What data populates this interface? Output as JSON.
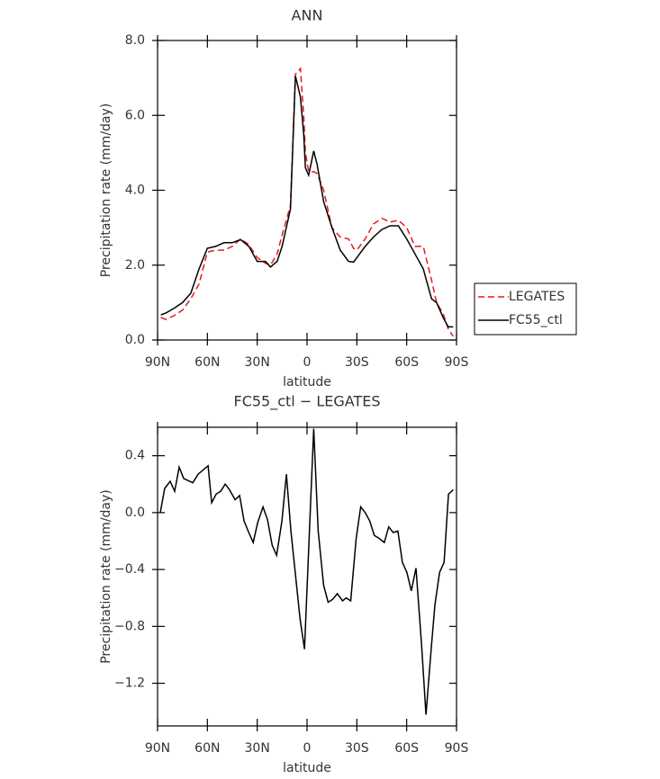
{
  "chart_data": [
    {
      "type": "line",
      "title": "ANN",
      "xlabel": "latitude",
      "ylabel": "Precipitation rate (mm/day)",
      "x": [
        88,
        85,
        80,
        75,
        70,
        65,
        60,
        55,
        50,
        45,
        40,
        35,
        30,
        25,
        22,
        18,
        15,
        10,
        7,
        4,
        2,
        1,
        -1,
        -4,
        -6,
        -10,
        -15,
        -20,
        -25,
        -28,
        -30,
        -35,
        -40,
        -45,
        -50,
        -55,
        -60,
        -65,
        -70,
        -75,
        -78,
        -82,
        -85,
        -88
      ],
      "series": [
        {
          "name": "LEGATES",
          "color": "#e8191c",
          "line_style": "dashed",
          "values": [
            0.6,
            0.55,
            0.65,
            0.8,
            1.1,
            1.5,
            2.35,
            2.4,
            2.4,
            2.5,
            2.7,
            2.55,
            2.2,
            2.05,
            2.0,
            2.3,
            2.8,
            3.6,
            7.1,
            7.25,
            6.0,
            5.0,
            4.5,
            4.5,
            4.45,
            4.0,
            3.0,
            2.75,
            2.7,
            2.45,
            2.4,
            2.7,
            3.1,
            3.25,
            3.15,
            3.2,
            3.0,
            2.5,
            2.5,
            1.6,
            1.0,
            0.7,
            0.3,
            0.1
          ]
        },
        {
          "name": "FC55_ctl",
          "color": "#000000",
          "line_style": "solid",
          "values": [
            0.67,
            0.72,
            0.85,
            1.0,
            1.25,
            1.9,
            2.45,
            2.5,
            2.6,
            2.6,
            2.68,
            2.5,
            2.1,
            2.1,
            1.95,
            2.1,
            2.5,
            3.5,
            7.05,
            6.5,
            5.5,
            4.6,
            4.4,
            5.05,
            4.7,
            3.7,
            3.0,
            2.4,
            2.1,
            2.08,
            2.2,
            2.5,
            2.75,
            2.95,
            3.05,
            3.05,
            2.7,
            2.3,
            1.9,
            1.1,
            1.0,
            0.6,
            0.35,
            0.35
          ]
        }
      ],
      "xlim": [
        90,
        -90
      ],
      "xticks": [
        {
          "value": 90,
          "label": "90N"
        },
        {
          "value": 60,
          "label": "60N"
        },
        {
          "value": 30,
          "label": "30N"
        },
        0,
        {
          "value": -30,
          "label": "30S"
        },
        {
          "value": -60,
          "label": "60S"
        },
        {
          "value": -90,
          "label": "90S"
        }
      ],
      "ylim": [
        0,
        8
      ],
      "yticks": [
        {
          "value": 0,
          "label": "0.0"
        },
        {
          "value": 2,
          "label": "2.0"
        },
        {
          "value": 4,
          "label": "4.0"
        },
        {
          "value": 6,
          "label": "6.0"
        },
        {
          "value": 8,
          "label": "8.0"
        }
      ],
      "legend": "right"
    },
    {
      "type": "line",
      "title": "FC55_ctl − LEGATES",
      "xlabel": "latitude",
      "ylabel": "Precipitation rate (mm/day)",
      "x": [
        88.4,
        85.7,
        82.4,
        79.7,
        77,
        74.3,
        68.8,
        65.6,
        59.6,
        57.4,
        54.7,
        52,
        49.3,
        46.6,
        43.3,
        40.6,
        37.9,
        35.1,
        32.4,
        29.7,
        26.5,
        23.8,
        21,
        18.3,
        15.1,
        12.4,
        9.7,
        4.2,
        1.5,
        -4,
        -6.7,
        -10,
        -12.7,
        -15.4,
        -18.2,
        -21.4,
        -23.6,
        -26.3,
        -29.6,
        -32.3,
        -35,
        -37.8,
        -40.5,
        -43.2,
        -46.5,
        -49.2,
        -51.9,
        -54.7,
        -57.4,
        -60.1,
        -62.8,
        -65.6,
        -68.9,
        -71.6,
        -74.8,
        -77,
        -79.8,
        -82.5,
        -85.2,
        -88
      ],
      "values": [
        0.0,
        0.17,
        0.22,
        0.15,
        0.32,
        0.24,
        0.21,
        0.27,
        0.33,
        0.07,
        0.13,
        0.15,
        0.2,
        0.16,
        0.09,
        0.12,
        -0.06,
        -0.14,
        -0.21,
        -0.07,
        0.04,
        -0.05,
        -0.23,
        -0.3,
        -0.06,
        0.27,
        -0.13,
        -0.75,
        -0.96,
        0.59,
        -0.13,
        -0.51,
        -0.63,
        -0.61,
        -0.57,
        -0.62,
        -0.6,
        -0.62,
        -0.18,
        0.04,
        0.0,
        -0.06,
        -0.16,
        -0.18,
        -0.21,
        -0.1,
        -0.14,
        -0.13,
        -0.35,
        -0.42,
        -0.55,
        -0.39,
        -0.92,
        -1.42,
        -0.95,
        -0.65,
        -0.42,
        -0.35,
        0.13,
        0.16
      ],
      "color": "#000000",
      "xlim": [
        90,
        -90
      ],
      "xticks": [
        {
          "value": 90,
          "label": "90N"
        },
        {
          "value": 60,
          "label": "60N"
        },
        {
          "value": 30,
          "label": "30N"
        },
        0,
        {
          "value": -30,
          "label": "30S"
        },
        {
          "value": -60,
          "label": "60S"
        },
        {
          "value": -90,
          "label": "90S"
        }
      ],
      "ylim": [
        -1.5,
        0.6
      ],
      "yticks": [
        {
          "value": -1.2,
          "label": "−1.2"
        },
        {
          "value": -0.8,
          "label": "−0.8"
        },
        {
          "value": -0.4,
          "label": "−0.4"
        },
        {
          "value": 0,
          "label": "0.0"
        },
        0.4
      ]
    }
  ]
}
